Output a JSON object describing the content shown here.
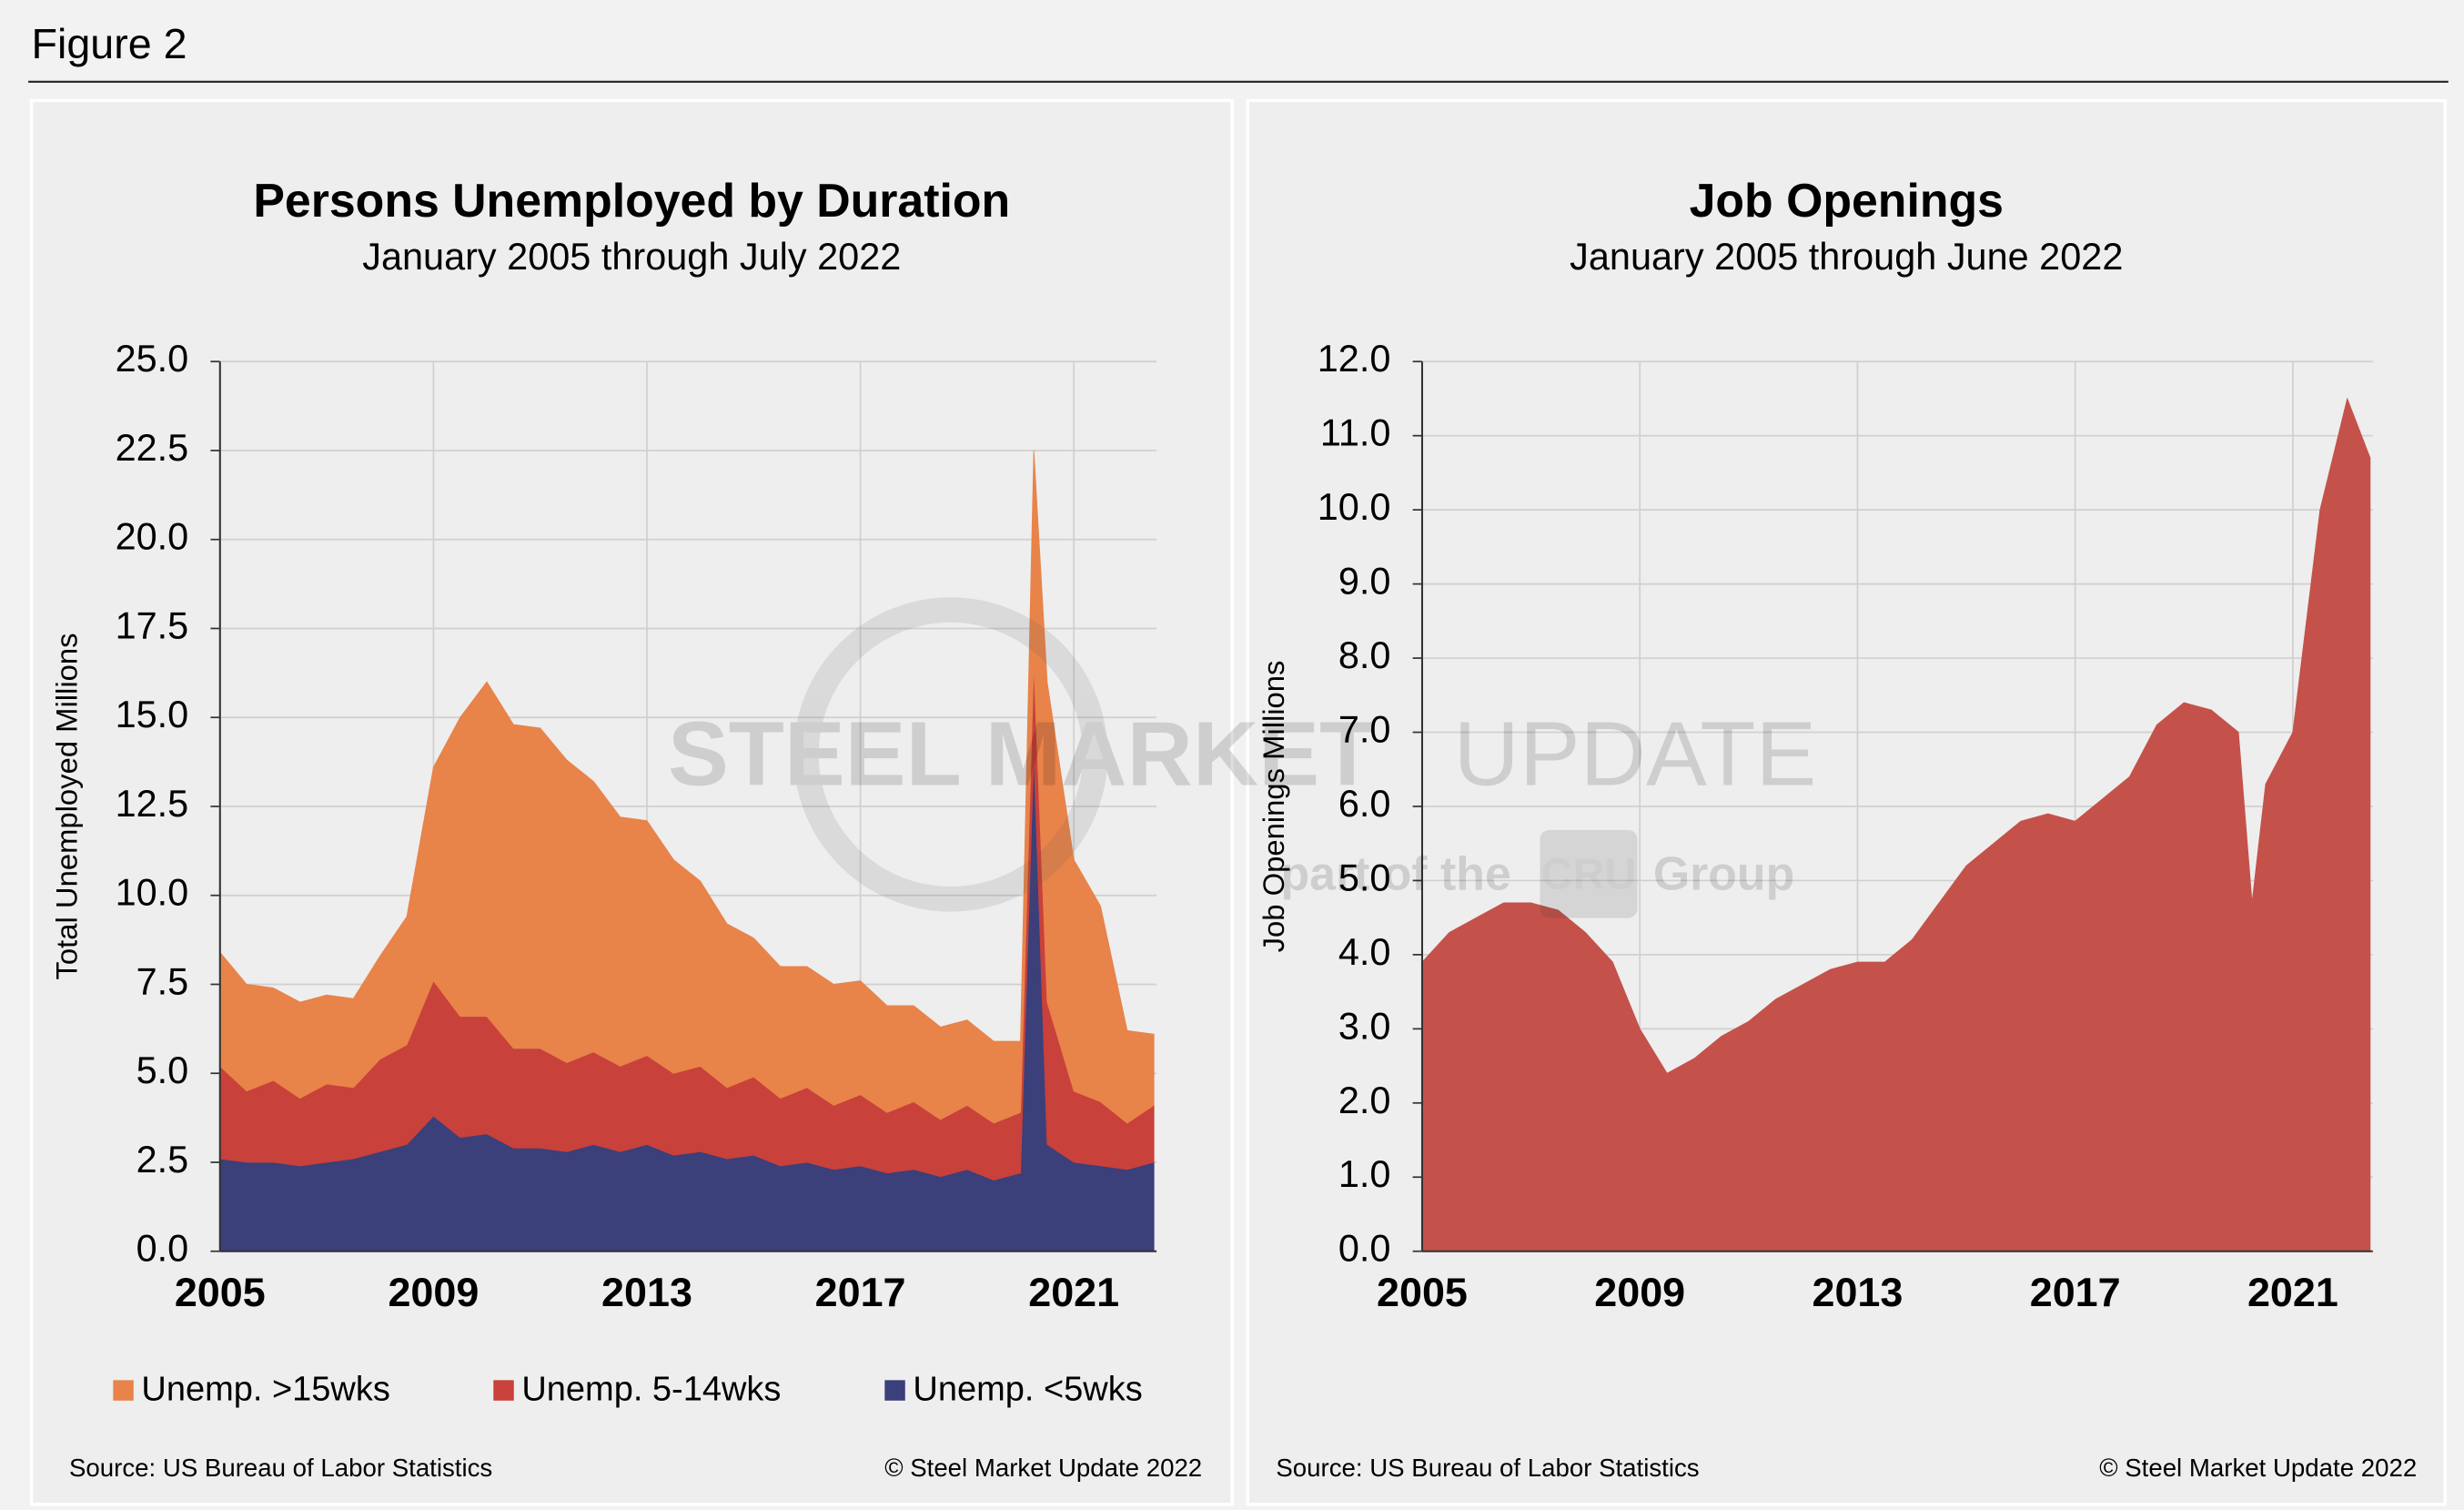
{
  "header": {
    "title": "Figure 2"
  },
  "watermark": {
    "brand": "STEEL MARKET",
    "brand2": "UPDATE",
    "tagline": "part of the",
    "logo": "CRU",
    "tagline2": "Group"
  },
  "chart_data": [
    {
      "type": "stacked_area",
      "title": "Persons Unemployed by Duration",
      "subtitle": "January 2005 through July 2022",
      "y_label": "Total Unemployed Millions",
      "source": "Source: US Bureau of Labor Statistics",
      "copyright": "© Steel Market Update 2022",
      "x": [
        2005,
        2005.5,
        2006,
        2006.5,
        2007,
        2007.5,
        2008,
        2008.5,
        2009,
        2009.5,
        2010,
        2010.5,
        2011,
        2011.5,
        2012,
        2012.5,
        2013,
        2013.5,
        2014,
        2014.5,
        2015,
        2015.5,
        2016,
        2016.5,
        2017,
        2017.5,
        2018,
        2018.5,
        2019,
        2019.5,
        2020,
        2020.25,
        2020.5,
        2021,
        2021.5,
        2022,
        2022.5
      ],
      "series": [
        {
          "name": "Unemp. >15wks",
          "color": "#e8834a",
          "values": [
            3.2,
            3.0,
            2.6,
            2.7,
            2.5,
            2.5,
            2.9,
            3.6,
            6.0,
            8.4,
            9.4,
            9.1,
            9.0,
            8.5,
            7.6,
            7.0,
            6.6,
            6.0,
            5.2,
            4.6,
            3.9,
            3.7,
            3.4,
            3.4,
            3.2,
            3.0,
            2.7,
            2.6,
            2.4,
            2.3,
            2.0,
            6.0,
            9.0,
            6.5,
            5.5,
            2.6,
            2.0
          ]
        },
        {
          "name": "Unemp. 5-14wks",
          "color": "#c8413a",
          "values": [
            2.6,
            2.0,
            2.3,
            1.9,
            2.2,
            2.0,
            2.6,
            2.8,
            3.8,
            3.4,
            3.3,
            2.8,
            2.8,
            2.5,
            2.6,
            2.4,
            2.5,
            2.3,
            2.4,
            2.0,
            2.2,
            1.9,
            2.1,
            1.8,
            2.0,
            1.7,
            1.9,
            1.6,
            1.8,
            1.6,
            1.7,
            2.5,
            4.0,
            2.0,
            1.8,
            1.3,
            1.6
          ]
        },
        {
          "name": "Unemp. <5wks",
          "color": "#3b3f7a",
          "values": [
            2.6,
            2.5,
            2.5,
            2.4,
            2.5,
            2.6,
            2.8,
            3.0,
            3.8,
            3.2,
            3.3,
            2.9,
            2.9,
            2.8,
            3.0,
            2.8,
            3.0,
            2.7,
            2.8,
            2.6,
            2.7,
            2.4,
            2.5,
            2.3,
            2.4,
            2.2,
            2.3,
            2.1,
            2.3,
            2.0,
            2.2,
            14.0,
            3.0,
            2.5,
            2.4,
            2.3,
            2.5
          ]
        }
      ],
      "xlim": [
        2005,
        2022.55
      ],
      "xticks": [
        2005,
        2009,
        2013,
        2017,
        2021
      ],
      "ylim": [
        0,
        25
      ],
      "yticks": [
        {
          "value": 0,
          "label": "0.0"
        },
        2.5,
        {
          "value": 5,
          "label": "5.0"
        },
        7.5,
        {
          "value": 10,
          "label": "10.0"
        },
        12.5,
        {
          "value": 15,
          "label": "15.0"
        },
        17.5,
        {
          "value": 20,
          "label": "20.0"
        },
        22.5,
        {
          "value": 25,
          "label": "25.0"
        }
      ],
      "grid": true
    },
    {
      "type": "area",
      "title": "Job Openings",
      "subtitle": "January 2005 through June 2022",
      "y_label": "Job Openings Millions",
      "source": "Source: US Bureau of Labor Statistics",
      "copyright": "© Steel Market Update 2022",
      "x": [
        2005,
        2005.5,
        2006,
        2006.5,
        2007,
        2007.5,
        2008,
        2008.5,
        2009,
        2009.5,
        2010,
        2010.5,
        2011,
        2011.5,
        2012,
        2012.5,
        2013,
        2013.5,
        2014,
        2014.5,
        2015,
        2015.5,
        2016,
        2016.5,
        2017,
        2017.5,
        2018,
        2018.5,
        2019,
        2019.5,
        2020,
        2020.25,
        2020.5,
        2021,
        2021.5,
        2022,
        2022.42
      ],
      "values": [
        3.9,
        4.3,
        4.5,
        4.7,
        4.7,
        4.6,
        4.3,
        3.9,
        3.0,
        2.4,
        2.6,
        2.9,
        3.1,
        3.4,
        3.6,
        3.8,
        3.9,
        3.9,
        4.2,
        4.7,
        5.2,
        5.5,
        5.8,
        5.9,
        5.8,
        6.1,
        6.4,
        7.1,
        7.4,
        7.3,
        7.0,
        4.7,
        6.3,
        7.0,
        10.0,
        11.5,
        10.7
      ],
      "color": "#c4524a",
      "xlim": [
        2005,
        2022.47
      ],
      "xticks": [
        2005,
        2009,
        2013,
        2017,
        2021
      ],
      "ylim": [
        0,
        12
      ],
      "yticks": [
        {
          "value": 0,
          "label": "0.0"
        },
        {
          "value": 1,
          "label": "1.0"
        },
        {
          "value": 2,
          "label": "2.0"
        },
        {
          "value": 3,
          "label": "3.0"
        },
        {
          "value": 4,
          "label": "4.0"
        },
        {
          "value": 5,
          "label": "5.0"
        },
        {
          "value": 6,
          "label": "6.0"
        },
        {
          "value": 7,
          "label": "7.0"
        },
        {
          "value": 8,
          "label": "8.0"
        },
        {
          "value": 9,
          "label": "9.0"
        },
        {
          "value": 10,
          "label": "10.0"
        },
        {
          "value": 11,
          "label": "11.0"
        },
        {
          "value": 12,
          "label": "12.0"
        }
      ],
      "grid": true
    }
  ]
}
